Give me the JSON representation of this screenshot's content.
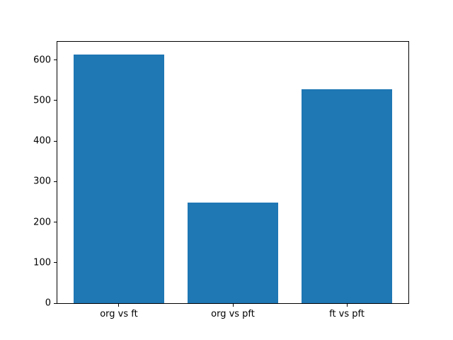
{
  "chart_data": {
    "type": "bar",
    "title": "",
    "xlabel": "",
    "ylabel": "",
    "categories": [
      "org vs ft",
      "org vs pft",
      "ft vs pft"
    ],
    "values": [
      614,
      248,
      528
    ],
    "yticks": [
      0,
      100,
      200,
      300,
      400,
      500,
      600
    ],
    "ylim": [
      0,
      645
    ],
    "xlim": [
      -0.54,
      2.54
    ],
    "bar_width": 0.8,
    "grid": false,
    "legend": null,
    "colors": {
      "bar": "#1f77b4",
      "spine": "#000000",
      "background": "#ffffff",
      "tick_text": "#000000"
    }
  }
}
